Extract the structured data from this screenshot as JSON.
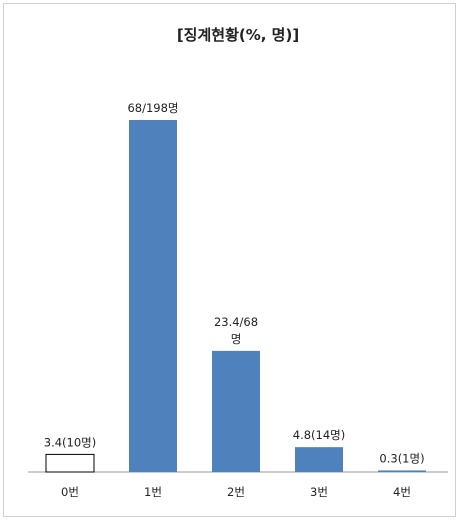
{
  "chart_data": {
    "type": "bar",
    "title": "[징계현황(%, 명)]",
    "categories": [
      "0번",
      "1번",
      "2번",
      "3번",
      "4번"
    ],
    "values": [
      3.4,
      68,
      23.4,
      4.8,
      0.3
    ],
    "data_labels": [
      [
        "3.4(10명)"
      ],
      [
        "68/198명"
      ],
      [
        "23.4/68",
        "명"
      ],
      [
        "4.8(14명)"
      ],
      [
        "0.3(1명)"
      ]
    ],
    "ylim": [
      0,
      68
    ],
    "grid": false,
    "legend": "none",
    "colors": {
      "bar": "#4f81bd",
      "first_bar_fill": "#ffffff",
      "first_bar_stroke": "#000000",
      "axis": "#999999"
    }
  }
}
